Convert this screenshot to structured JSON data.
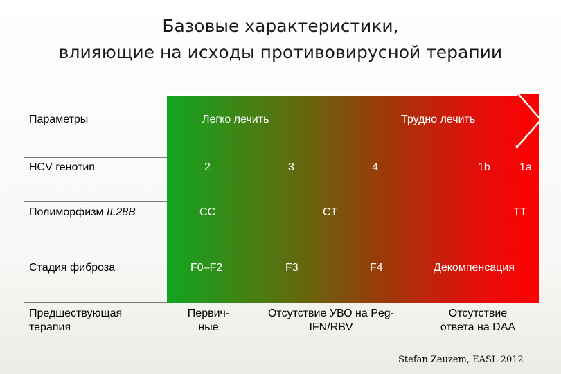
{
  "title": {
    "line1": "Базовые характеристики,",
    "line2": "влияющие на исходы противовирусной терапии"
  },
  "colors": {
    "easy": "#12a51e",
    "hard": "#ff0000"
  },
  "header": {
    "param_label": "Параметры",
    "easy_label": "Легко лечить",
    "hard_label": "Трудно лечить"
  },
  "rows": {
    "genotype": {
      "label": "HCV генотип",
      "values": [
        "2",
        "3",
        "4",
        "1b",
        "1a"
      ]
    },
    "il28b": {
      "label_prefix": "Полиморфизм ",
      "label_italic": "IL28B",
      "values": [
        "CC",
        "CT",
        "TT"
      ]
    },
    "fibrosis": {
      "label": "Стадия фиброза",
      "values": [
        "F0–F2",
        "F3",
        "F4",
        "Декомпенсация"
      ]
    },
    "therapy": {
      "label_line1": "Предшествующая",
      "label_line2": "терапия",
      "values": [
        {
          "line1": "Первич-",
          "line2": "ные"
        },
        {
          "line1": "Отсутствие УВО на Peg-",
          "line2": "IFN/RBV"
        },
        {
          "line1": "Отсутствие",
          "line2": "ответа на DAA"
        }
      ]
    }
  },
  "source": "Stefan Zeuzem, EASL 2012"
}
